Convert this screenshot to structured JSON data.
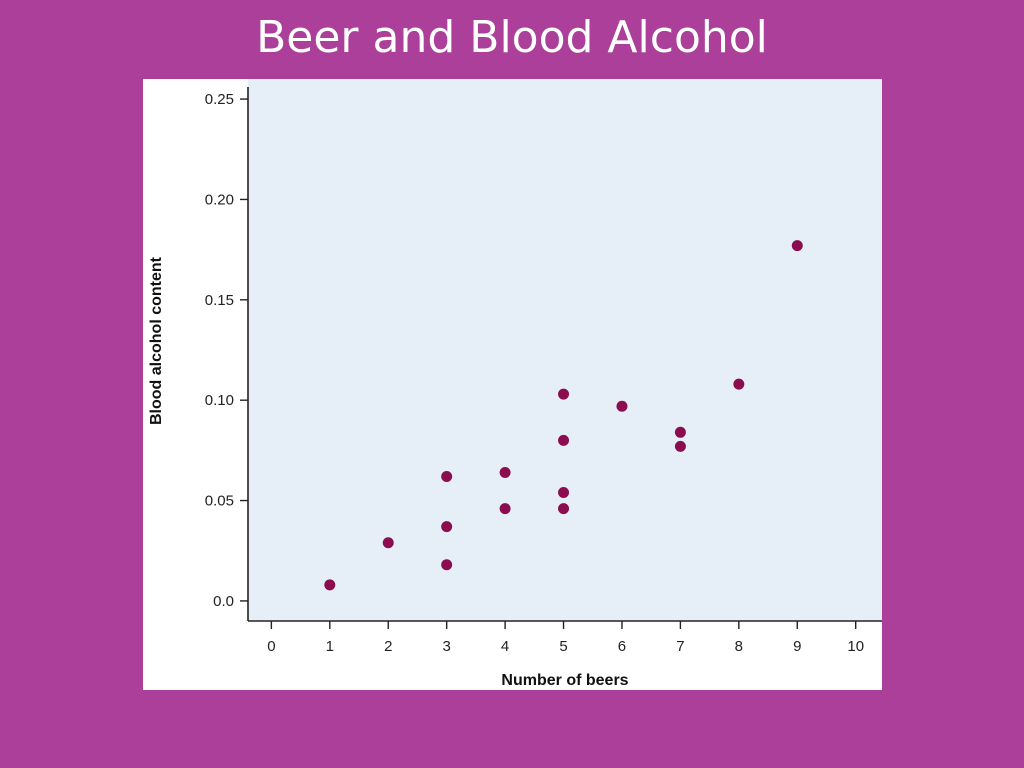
{
  "slide": {
    "title": "Beer and Blood Alcohol"
  },
  "colors": {
    "slide_background": "#ab3f99",
    "plot_background": "#e6eff7",
    "point": "#8b0d4f",
    "axis": "#222222"
  },
  "chart_data": {
    "type": "scatter",
    "title": "",
    "xlabel": "Number of beers",
    "ylabel": "Blood alcohol content",
    "xlim": [
      -0.4,
      10.45
    ],
    "ylim": [
      -0.01,
      0.26
    ],
    "x_ticks": [
      0,
      1,
      2,
      3,
      4,
      5,
      6,
      7,
      8,
      9,
      10
    ],
    "x_tick_labels": [
      "0",
      "1",
      "2",
      "3",
      "4",
      "5",
      "6",
      "7",
      "8",
      "9",
      "10"
    ],
    "y_ticks": [
      0.0,
      0.05,
      0.1,
      0.15,
      0.2,
      0.25
    ],
    "y_tick_labels": [
      "0.0",
      "0.05",
      "0.10",
      "0.15",
      "0.20",
      "0.25"
    ],
    "grid": false,
    "legend": "none",
    "points": [
      {
        "x": 1,
        "y": 0.008
      },
      {
        "x": 2,
        "y": 0.029
      },
      {
        "x": 3,
        "y": 0.062
      },
      {
        "x": 3,
        "y": 0.037
      },
      {
        "x": 3,
        "y": 0.018
      },
      {
        "x": 4,
        "y": 0.064
      },
      {
        "x": 4,
        "y": 0.046
      },
      {
        "x": 5,
        "y": 0.103
      },
      {
        "x": 5,
        "y": 0.08
      },
      {
        "x": 5,
        "y": 0.054
      },
      {
        "x": 5,
        "y": 0.046
      },
      {
        "x": 6,
        "y": 0.097
      },
      {
        "x": 7,
        "y": 0.084
      },
      {
        "x": 7,
        "y": 0.077
      },
      {
        "x": 8,
        "y": 0.108
      },
      {
        "x": 9,
        "y": 0.177
      }
    ]
  }
}
